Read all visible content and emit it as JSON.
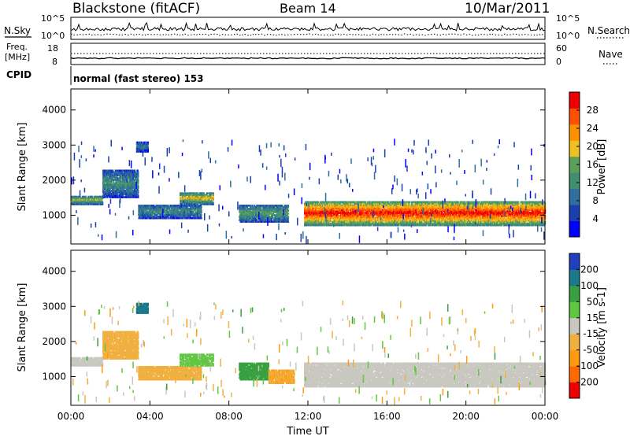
{
  "header": {
    "station": "Blackstone (fitACF)",
    "beam": "Beam 14",
    "date": "10/Mar/2011"
  },
  "panels": {
    "nsky": {
      "left_label": "N.Sky",
      "left_ticks": [
        "10^5",
        "10^0"
      ],
      "right_label": "N.Search",
      "right_ticks": [
        "10^5",
        "10^0"
      ]
    },
    "freq": {
      "left_label_1": "Freq.",
      "left_label_2": "[MHz]",
      "left_ticks": [
        "18",
        "8"
      ],
      "right_label": "Nave",
      "right_ticks": [
        "60",
        "0"
      ]
    },
    "cpid": {
      "label": "CPID",
      "text": "normal (fast stereo) 153"
    }
  },
  "chart_data": [
    {
      "type": "heatmap",
      "quantity": "Power",
      "ylabel": "Slant Range [km]",
      "xlabel": "Time UT",
      "x_ticks": [
        "00:00",
        "04:00",
        "08:00",
        "12:00",
        "16:00",
        "20:00",
        "00:00"
      ],
      "x_range_hours": [
        0,
        24
      ],
      "y_ticks": [
        1000,
        2000,
        3000,
        4000
      ],
      "ylim": [
        180,
        4600
      ],
      "colorbar": {
        "label": "Power [dB]",
        "ticks": [
          "28",
          "24",
          "20",
          "16",
          "12",
          "8",
          "4"
        ],
        "range": [
          0,
          30
        ],
        "colors": [
          "#0000ff",
          "#1a3fb0",
          "#2e6fa0",
          "#3f8f70",
          "#5aa05a",
          "#f0c020",
          "#ff9000",
          "#ff5000",
          "#ee0000"
        ]
      },
      "features": [
        {
          "start_h": 0.0,
          "end_h": 1.6,
          "range_km": [
            1300,
            1550
          ],
          "level_db": 14
        },
        {
          "start_h": 1.6,
          "end_h": 3.4,
          "range_km": [
            1500,
            2300
          ],
          "level_db": 10
        },
        {
          "start_h": 3.3,
          "end_h": 3.9,
          "range_km": [
            2800,
            3100
          ],
          "level_db": 8
        },
        {
          "start_h": 3.4,
          "end_h": 6.6,
          "range_km": [
            900,
            1300
          ],
          "level_db": 10
        },
        {
          "start_h": 5.5,
          "end_h": 7.2,
          "range_km": [
            1300,
            1650
          ],
          "level_db": 16
        },
        {
          "start_h": 8.5,
          "end_h": 11.0,
          "range_km": [
            800,
            1300
          ],
          "level_db": 12
        },
        {
          "start_h": 11.8,
          "end_h": 24.0,
          "range_km": [
            700,
            1400
          ],
          "level_db": 24
        }
      ]
    },
    {
      "type": "heatmap",
      "quantity": "Velocity",
      "ylabel": "Slant Range [km]",
      "xlabel": "Time UT",
      "x_ticks": [
        "00:00",
        "04:00",
        "08:00",
        "12:00",
        "16:00",
        "20:00",
        "00:00"
      ],
      "x_range_hours": [
        0,
        24
      ],
      "y_ticks": [
        1000,
        2000,
        3000,
        4000
      ],
      "ylim": [
        180,
        4600
      ],
      "colorbar": {
        "label": "Velocity [m s-1]",
        "ticks": [
          "200",
          "100",
          "50",
          "15",
          "-15",
          "-50",
          "-100",
          "-200"
        ],
        "range": [
          -250,
          250
        ],
        "colors": [
          "#ee0000",
          "#ff6a00",
          "#ff9a10",
          "#f0b040",
          "#c8c8c0",
          "#60c840",
          "#38a040",
          "#1a7a8a",
          "#2040c0"
        ]
      },
      "features": [
        {
          "start_h": 0.0,
          "end_h": 1.6,
          "range_km": [
            1300,
            1550
          ],
          "velocity": -10
        },
        {
          "start_h": 1.6,
          "end_h": 3.4,
          "range_km": [
            1500,
            2300
          ],
          "velocity": -60
        },
        {
          "start_h": 3.3,
          "end_h": 3.9,
          "range_km": [
            2800,
            3100
          ],
          "velocity": 180
        },
        {
          "start_h": 3.4,
          "end_h": 6.6,
          "range_km": [
            900,
            1300
          ],
          "velocity": -60
        },
        {
          "start_h": 5.5,
          "end_h": 7.2,
          "range_km": [
            1300,
            1650
          ],
          "velocity": 40
        },
        {
          "start_h": 8.5,
          "end_h": 10.0,
          "range_km": [
            900,
            1400
          ],
          "velocity": 120
        },
        {
          "start_h": 10.0,
          "end_h": 11.3,
          "range_km": [
            800,
            1200
          ],
          "velocity": -80
        },
        {
          "start_h": 11.8,
          "end_h": 24.0,
          "range_km": [
            700,
            1400
          ],
          "velocity": 0
        }
      ]
    }
  ]
}
